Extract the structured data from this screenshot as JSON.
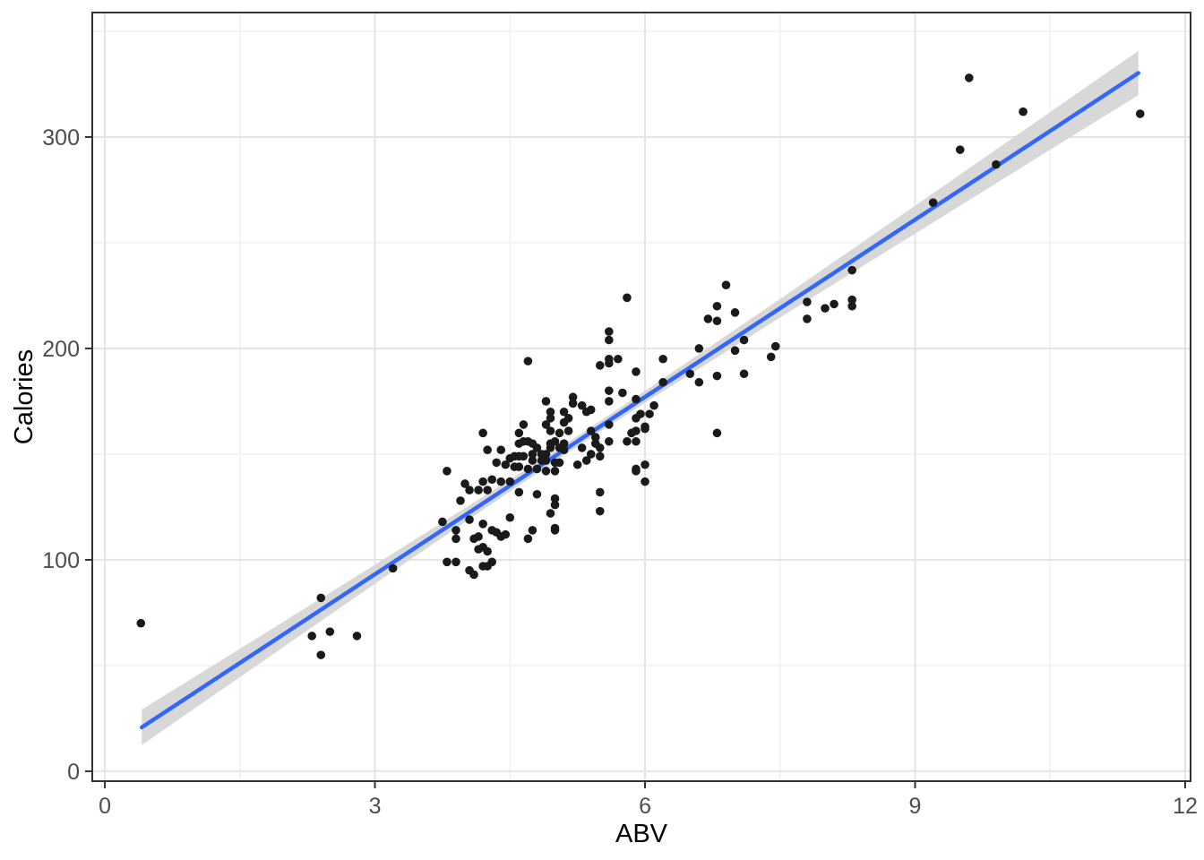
{
  "chart_data": {
    "type": "scatter",
    "title": "",
    "xlabel": "ABV",
    "ylabel": "Calories",
    "x_axis": {
      "range": [
        -0.14,
        12.06
      ],
      "major_ticks": {
        "values": [
          0,
          3,
          6,
          9,
          12
        ],
        "labels": [
          "0",
          "3",
          "6",
          "9",
          "12"
        ]
      },
      "minor_gridlines": [
        1.5,
        4.5,
        7.5,
        10.5
      ]
    },
    "y_axis": {
      "range": [
        -4.7,
        358.9
      ],
      "major_ticks": {
        "values": [
          0,
          100,
          200,
          300
        ],
        "labels": [
          "0",
          "100",
          "200",
          "300"
        ]
      },
      "minor_gridlines": [
        50,
        150,
        250,
        350
      ]
    },
    "grid": "on",
    "legend": "none",
    "series": [
      {
        "name": "beers",
        "geom": "point",
        "color": "#1a1a1a",
        "points": [
          [
            0.4,
            70
          ],
          [
            2.3,
            64
          ],
          [
            2.4,
            55
          ],
          [
            2.4,
            82
          ],
          [
            2.5,
            66
          ],
          [
            2.8,
            64
          ],
          [
            3.2,
            96
          ],
          [
            3.75,
            118
          ],
          [
            3.8,
            99
          ],
          [
            3.8,
            142
          ],
          [
            3.9,
            99
          ],
          [
            3.9,
            110
          ],
          [
            3.9,
            114
          ],
          [
            3.95,
            128
          ],
          [
            4.0,
            136
          ],
          [
            4.05,
            95
          ],
          [
            4.05,
            119
          ],
          [
            4.05,
            133
          ],
          [
            4.1,
            93
          ],
          [
            4.1,
            110
          ],
          [
            4.15,
            105
          ],
          [
            4.15,
            111
          ],
          [
            4.15,
            133
          ],
          [
            4.2,
            97
          ],
          [
            4.2,
            106
          ],
          [
            4.2,
            117
          ],
          [
            4.2,
            137
          ],
          [
            4.2,
            160
          ],
          [
            4.25,
            97
          ],
          [
            4.25,
            104
          ],
          [
            4.25,
            133
          ],
          [
            4.25,
            152
          ],
          [
            4.3,
            99
          ],
          [
            4.3,
            114
          ],
          [
            4.3,
            138
          ],
          [
            4.35,
            113
          ],
          [
            4.35,
            146
          ],
          [
            4.4,
            111
          ],
          [
            4.4,
            137
          ],
          [
            4.4,
            152
          ],
          [
            4.45,
            112
          ],
          [
            4.45,
            145
          ],
          [
            4.5,
            120
          ],
          [
            4.5,
            137
          ],
          [
            4.5,
            148
          ],
          [
            4.55,
            144
          ],
          [
            4.55,
            149
          ],
          [
            4.6,
            132
          ],
          [
            4.6,
            144
          ],
          [
            4.6,
            149
          ],
          [
            4.6,
            155
          ],
          [
            4.6,
            160
          ],
          [
            4.65,
            149
          ],
          [
            4.65,
            156
          ],
          [
            4.65,
            164
          ],
          [
            4.7,
            110
          ],
          [
            4.7,
            143
          ],
          [
            4.7,
            156
          ],
          [
            4.7,
            194
          ],
          [
            4.75,
            114
          ],
          [
            4.75,
            147
          ],
          [
            4.75,
            150
          ],
          [
            4.75,
            155
          ],
          [
            4.8,
            131
          ],
          [
            4.8,
            143
          ],
          [
            4.8,
            153
          ],
          [
            4.85,
            147
          ],
          [
            4.85,
            150
          ],
          [
            4.9,
            142
          ],
          [
            4.9,
            147
          ],
          [
            4.9,
            150
          ],
          [
            4.9,
            164
          ],
          [
            4.9,
            175
          ],
          [
            4.95,
            122
          ],
          [
            4.95,
            153
          ],
          [
            4.95,
            155
          ],
          [
            4.95,
            161
          ],
          [
            4.95,
            167
          ],
          [
            4.95,
            170
          ],
          [
            5.0,
            114
          ],
          [
            5.0,
            115
          ],
          [
            5.0,
            126
          ],
          [
            5.0,
            129
          ],
          [
            5.0,
            142
          ],
          [
            5.0,
            146
          ],
          [
            5.0,
            156
          ],
          [
            5.05,
            146
          ],
          [
            5.05,
            153
          ],
          [
            5.05,
            160
          ],
          [
            5.1,
            152
          ],
          [
            5.1,
            155
          ],
          [
            5.1,
            165
          ],
          [
            5.1,
            170
          ],
          [
            5.15,
            161
          ],
          [
            5.15,
            167
          ],
          [
            5.2,
            174
          ],
          [
            5.2,
            177
          ],
          [
            5.25,
            145
          ],
          [
            5.3,
            153
          ],
          [
            5.3,
            173
          ],
          [
            5.35,
            147
          ],
          [
            5.35,
            170
          ],
          [
            5.4,
            150
          ],
          [
            5.4,
            161
          ],
          [
            5.4,
            171
          ],
          [
            5.45,
            155
          ],
          [
            5.45,
            158
          ],
          [
            5.5,
            123
          ],
          [
            5.5,
            132
          ],
          [
            5.5,
            149
          ],
          [
            5.5,
            153
          ],
          [
            5.5,
            192
          ],
          [
            5.6,
            156
          ],
          [
            5.6,
            164
          ],
          [
            5.6,
            175
          ],
          [
            5.6,
            180
          ],
          [
            5.6,
            193
          ],
          [
            5.6,
            195
          ],
          [
            5.6,
            204
          ],
          [
            5.6,
            208
          ],
          [
            5.7,
            195
          ],
          [
            5.75,
            179
          ],
          [
            5.8,
            156
          ],
          [
            5.8,
            224
          ],
          [
            5.85,
            160
          ],
          [
            5.9,
            142
          ],
          [
            5.9,
            143
          ],
          [
            5.9,
            156
          ],
          [
            5.9,
            161
          ],
          [
            5.9,
            167
          ],
          [
            5.9,
            176
          ],
          [
            5.9,
            189
          ],
          [
            5.95,
            169
          ],
          [
            6.0,
            137
          ],
          [
            6.0,
            145
          ],
          [
            6.0,
            162
          ],
          [
            6.0,
            163
          ],
          [
            6.05,
            169
          ],
          [
            6.1,
            173
          ],
          [
            6.2,
            184
          ],
          [
            6.2,
            195
          ],
          [
            6.5,
            188
          ],
          [
            6.6,
            184
          ],
          [
            6.6,
            200
          ],
          [
            6.7,
            214
          ],
          [
            6.8,
            160
          ],
          [
            6.8,
            187
          ],
          [
            6.8,
            213
          ],
          [
            6.8,
            220
          ],
          [
            6.9,
            230
          ],
          [
            7.0,
            199
          ],
          [
            7.0,
            217
          ],
          [
            7.1,
            188
          ],
          [
            7.1,
            204
          ],
          [
            7.4,
            196
          ],
          [
            7.45,
            201
          ],
          [
            7.8,
            214
          ],
          [
            7.8,
            222
          ],
          [
            8.0,
            219
          ],
          [
            8.1,
            221
          ],
          [
            8.3,
            220
          ],
          [
            8.3,
            223
          ],
          [
            8.3,
            237
          ],
          [
            9.2,
            269
          ],
          [
            9.5,
            294
          ],
          [
            9.6,
            328
          ],
          [
            9.9,
            287
          ],
          [
            10.2,
            312
          ],
          [
            11.5,
            311
          ]
        ]
      },
      {
        "name": "linear-fit",
        "geom": "smooth-line",
        "color": "#3366FF",
        "x_start": 0.41,
        "x_end": 11.48,
        "intercept": 9.3,
        "slope": 27.96
      },
      {
        "name": "confidence-band",
        "geom": "ribbon",
        "color": "#d8d8d8",
        "band": [
          {
            "x": 0.41,
            "lo": 12.4,
            "hi": 29.2
          },
          {
            "x": 1.5,
            "lo": 44.5,
            "hi": 57.9
          },
          {
            "x": 3.0,
            "lo": 88.7,
            "hi": 97.7
          },
          {
            "x": 4.5,
            "lo": 132.3,
            "hi": 137.9
          },
          {
            "x": 5.3,
            "lo": 155.0,
            "hi": 160.0
          },
          {
            "x": 6.0,
            "lo": 174.3,
            "hi": 179.9
          },
          {
            "x": 7.5,
            "lo": 214.6,
            "hi": 223.4
          },
          {
            "x": 9.0,
            "lo": 254.3,
            "hi": 267.5
          },
          {
            "x": 10.5,
            "lo": 294.0,
            "hi": 311.8
          },
          {
            "x": 11.48,
            "lo": 319.8,
            "hi": 340.8
          }
        ]
      }
    ],
    "style": {
      "panel_background": "#ffffff",
      "panel_border": "#333333",
      "major_grid_color": "#e4e4e4",
      "minor_grid_color": "#f0f0f0",
      "tick_color": "#333333",
      "tick_label_color": "#4d4d4d",
      "axis_title_color": "#000000",
      "point_color": "#1a1a1a",
      "line_color": "#3366FF",
      "band_color": "#d8d8d8"
    }
  }
}
